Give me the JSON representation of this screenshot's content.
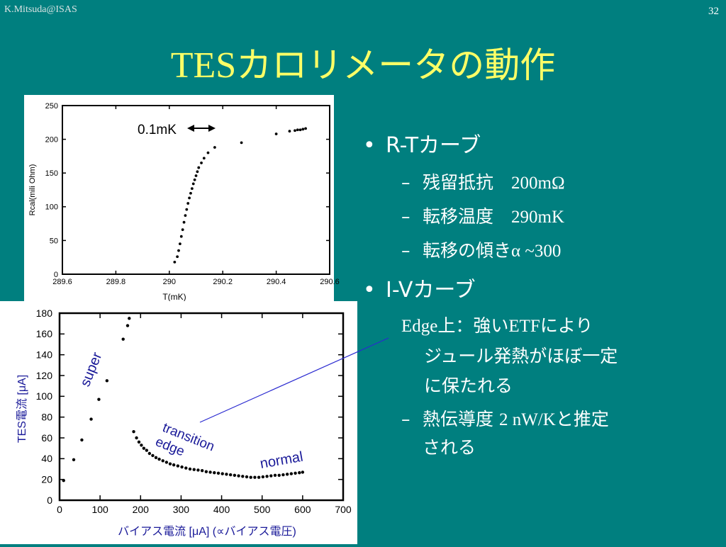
{
  "header": {
    "credit": "K.Mitsuda@ISAS",
    "page_number": "32"
  },
  "title": {
    "latin": "TES",
    "jp": "カロリメータの動作"
  },
  "bullets": {
    "rt": {
      "label": "R-Tカーブ",
      "items": [
        {
          "jp": "残留抵抗　",
          "val": "200mΩ"
        },
        {
          "jp": "転移温度　",
          "val": "290mK"
        },
        {
          "jp": "転移の傾き",
          "val": "α ~300"
        }
      ]
    },
    "iv": {
      "label": "I-Vカーブ",
      "edge_note": {
        "p1": "Edge",
        "p2": "上：強い",
        "p3": "ETF",
        "p4": "により"
      },
      "edge_lines": [
        "ジュール発熱がほぼ一定",
        "に保たれる"
      ],
      "conductance": {
        "jp1": "熱伝導度 ",
        "val": "2 nW/K",
        "jp2": "と推定"
      },
      "conductance_line2": "される"
    }
  },
  "chart_data": [
    {
      "type": "scatter",
      "title": "",
      "xlabel": "T(mK)",
      "ylabel": "Rcal(mili Ohm)",
      "xlim": [
        289.6,
        290.6
      ],
      "ylim": [
        0,
        250
      ],
      "xticks": [
        "289.6",
        "289.8",
        "290",
        "290.2",
        "290.4",
        "290.6"
      ],
      "xtick_values": [
        289.6,
        289.8,
        290.0,
        290.2,
        290.4,
        290.6
      ],
      "yticks": [
        "0",
        "50",
        "100",
        "150",
        "200",
        "250"
      ],
      "ytick_values": [
        0,
        50,
        100,
        150,
        200,
        250
      ],
      "annotation": "0.1mK",
      "marker_color": "#000000",
      "x": [
        290.02,
        290.03,
        290.035,
        290.04,
        290.045,
        290.05,
        290.055,
        290.06,
        290.065,
        290.07,
        290.075,
        290.08,
        290.085,
        290.09,
        290.095,
        290.1,
        290.105,
        290.11,
        290.12,
        290.13,
        290.145,
        290.17,
        290.27,
        290.4,
        290.45,
        290.47,
        290.48,
        290.49,
        290.5,
        290.51
      ],
      "y": [
        18,
        26,
        35,
        45,
        56,
        66,
        77,
        87,
        96,
        105,
        113,
        120,
        127,
        134,
        140,
        146,
        152,
        158,
        165,
        172,
        180,
        188,
        195,
        208,
        212,
        213,
        214,
        214,
        215,
        216
      ]
    },
    {
      "type": "scatter",
      "title": "",
      "xlabel": "バイアス電流 [μA] (∝バイアス電圧)",
      "ylabel": "TES電流 [μA]",
      "xlim": [
        0,
        700
      ],
      "ylim": [
        0,
        180
      ],
      "xticks": [
        "0",
        "100",
        "200",
        "300",
        "400",
        "500",
        "600",
        "700"
      ],
      "xtick_values": [
        0,
        100,
        200,
        300,
        400,
        500,
        600,
        700
      ],
      "yticks": [
        "0",
        "20",
        "40",
        "60",
        "80",
        "100",
        "120",
        "140",
        "160",
        "180"
      ],
      "ytick_values": [
        0,
        20,
        40,
        60,
        80,
        100,
        120,
        140,
        160,
        180
      ],
      "annotations": [
        "super",
        "transition",
        "edge",
        "normal"
      ],
      "marker_color": "#000000",
      "label_color": "#1a1a99",
      "x": [
        10,
        35,
        55,
        78,
        97,
        117,
        157,
        168,
        172,
        183,
        190,
        196,
        202,
        208,
        215,
        222,
        230,
        238,
        246,
        255,
        264,
        273,
        282,
        292,
        302,
        312,
        322,
        332,
        342,
        352,
        362,
        372,
        382,
        392,
        402,
        412,
        422,
        432,
        442,
        452,
        462,
        472,
        482,
        492,
        502,
        512,
        522,
        532,
        542,
        552,
        562,
        572,
        582,
        592,
        600
      ],
      "y": [
        19,
        39,
        58,
        78,
        97,
        115,
        155,
        168,
        175,
        66,
        60,
        56,
        53,
        50,
        48,
        45,
        43,
        41,
        39.5,
        38,
        36.5,
        35,
        34,
        33,
        32,
        31,
        30,
        29.5,
        29,
        28.5,
        27.5,
        27,
        26.5,
        26,
        25.5,
        25,
        24.5,
        24,
        23.5,
        23,
        22.5,
        22,
        22,
        22,
        22.5,
        23,
        23.5,
        24,
        24,
        24.5,
        25,
        25.5,
        26,
        26.5,
        27
      ]
    }
  ]
}
